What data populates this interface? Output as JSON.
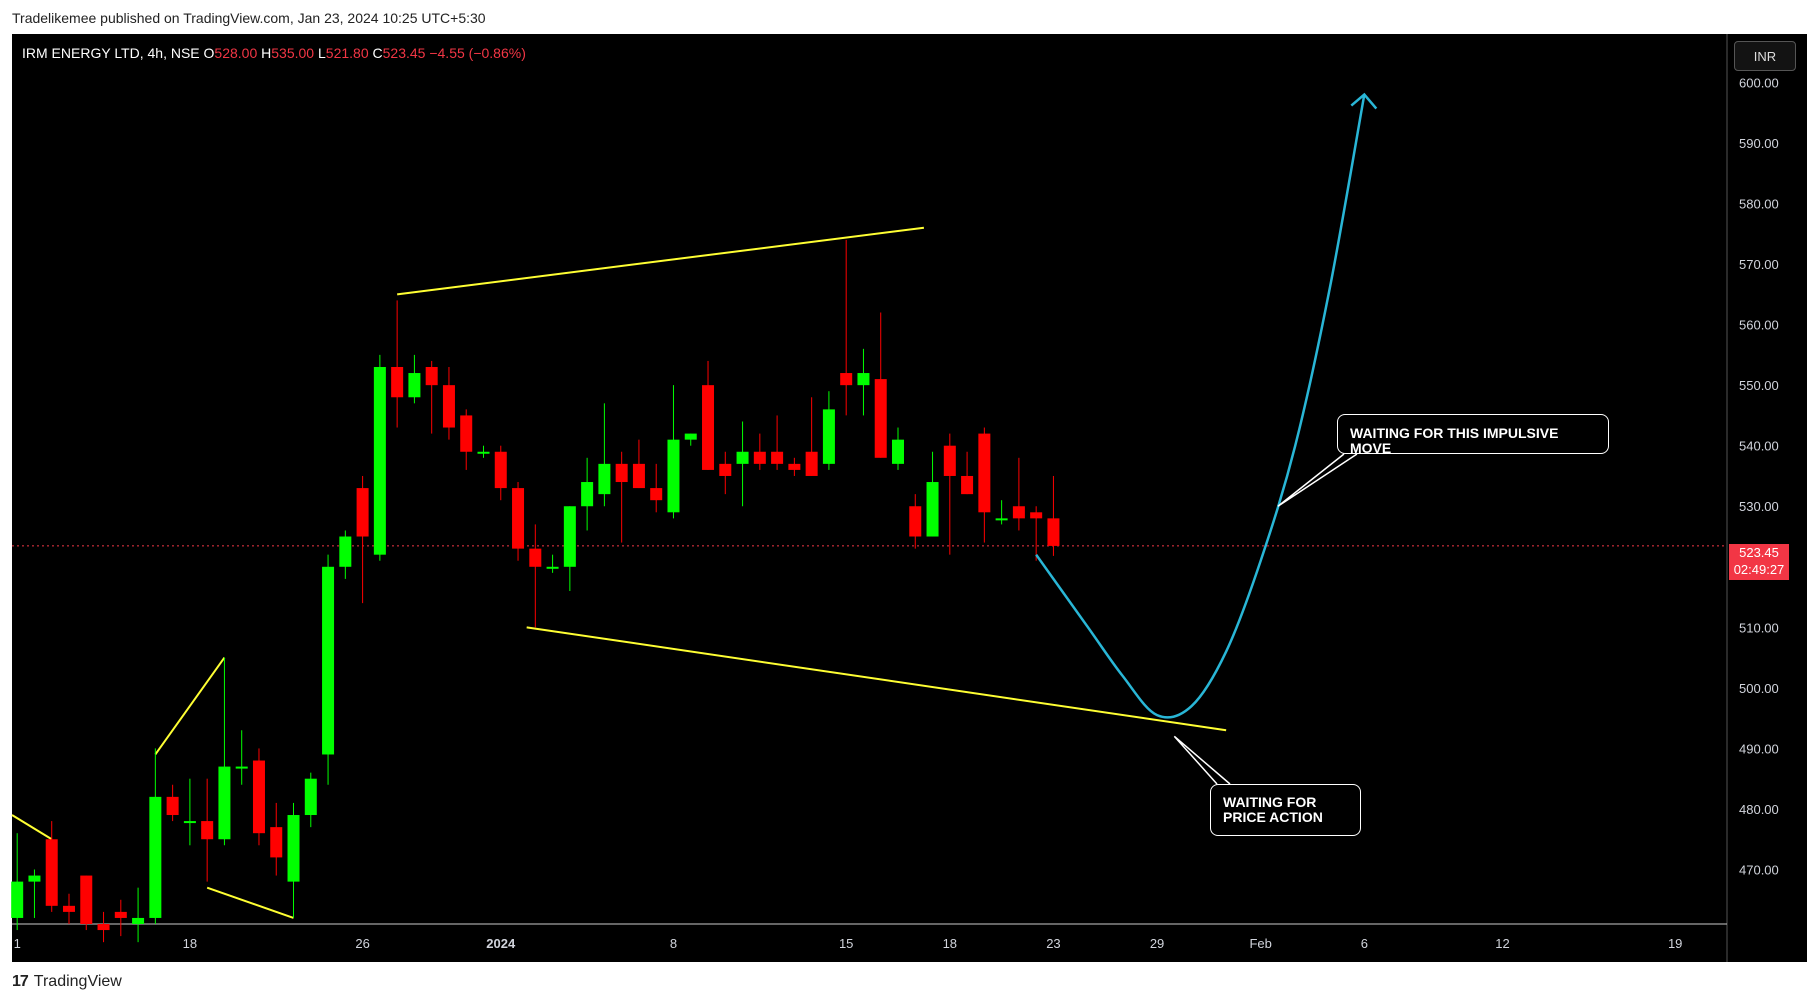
{
  "header": {
    "publisher_line": "Tradelikemee published on TradingView.com, Jan 23, 2024 10:25 UTC+5:30"
  },
  "symbol": {
    "name": "IRM ENERGY LTD, 4h, NSE",
    "o_label": "O",
    "o_value": "528.00",
    "h_label": "H",
    "h_value": "535.00",
    "l_label": "L",
    "l_value": "521.80",
    "c_label": "C",
    "c_value": "523.45",
    "change": "−4.55 (−0.86%)"
  },
  "currency_button": "INR",
  "price_tag": {
    "price": "523.45",
    "countdown": "02:49:27"
  },
  "annotations": {
    "impulse": "WAITING FOR THIS IMPULSIVE MOVE",
    "price_action_line1": "WAITING FOR",
    "price_action_line2": "PRICE ACTION"
  },
  "footer": {
    "logo_text": "TradingView"
  },
  "colors": {
    "up": "#00ff00",
    "down": "#ff0000",
    "trendline": "#ffff33",
    "projection": "#29b6d6",
    "background": "#000000"
  },
  "chart_data": {
    "type": "candlestick",
    "ylim": [
      461,
      608
    ],
    "y_ticks": [
      470,
      480,
      490,
      500,
      510,
      520,
      530,
      540,
      550,
      560,
      570,
      580,
      590,
      600
    ],
    "y_tick_labels": [
      "470.00",
      "480.00",
      "490.00",
      "500.00",
      "510.00",
      "520.00",
      "530.00",
      "540.00",
      "550.00",
      "560.00",
      "570.00",
      "580.00",
      "590.00",
      "600.00"
    ],
    "x_ticks": [
      {
        "label": "1",
        "index": 0
      },
      {
        "label": "18",
        "index": 10
      },
      {
        "label": "26",
        "index": 20
      },
      {
        "label": "2024",
        "index": 28
      },
      {
        "label": "8",
        "index": 38
      },
      {
        "label": "15",
        "index": 48
      },
      {
        "label": "18",
        "index": 54
      },
      {
        "label": "23",
        "index": 60
      },
      {
        "label": "29",
        "index": 66
      },
      {
        "label": "Feb",
        "index": 72
      },
      {
        "label": "6",
        "index": 78
      },
      {
        "label": "12",
        "index": 86
      },
      {
        "label": "19",
        "index": 96
      }
    ],
    "x_range": [
      -0.3,
      99
    ],
    "last_price": 523.45,
    "candles": [
      {
        "o": 462,
        "h": 476,
        "l": 460,
        "c": 468
      },
      {
        "o": 468,
        "h": 470,
        "l": 462,
        "c": 469
      },
      {
        "o": 475,
        "h": 478,
        "l": 463,
        "c": 464
      },
      {
        "o": 464,
        "h": 466,
        "l": 461,
        "c": 463
      },
      {
        "o": 469,
        "h": 469,
        "l": 460,
        "c": 461
      },
      {
        "o": 461,
        "h": 463,
        "l": 458,
        "c": 460
      },
      {
        "o": 463,
        "h": 465,
        "l": 459,
        "c": 462
      },
      {
        "o": 461,
        "h": 467,
        "l": 458,
        "c": 462
      },
      {
        "o": 462,
        "h": 490,
        "l": 461,
        "c": 482
      },
      {
        "o": 482,
        "h": 484,
        "l": 478,
        "c": 479
      },
      {
        "o": 478,
        "h": 485,
        "l": 474,
        "c": 478
      },
      {
        "o": 478,
        "h": 485,
        "l": 468,
        "c": 475
      },
      {
        "o": 475,
        "h": 505,
        "l": 474,
        "c": 487
      },
      {
        "o": 487,
        "h": 493,
        "l": 484,
        "c": 487
      },
      {
        "o": 488,
        "h": 490,
        "l": 474,
        "c": 476
      },
      {
        "o": 477,
        "h": 481,
        "l": 469,
        "c": 472
      },
      {
        "o": 468,
        "h": 481,
        "l": 462,
        "c": 479
      },
      {
        "o": 479,
        "h": 486,
        "l": 477,
        "c": 485
      },
      {
        "o": 489,
        "h": 522,
        "l": 484,
        "c": 520
      },
      {
        "o": 520,
        "h": 526,
        "l": 518,
        "c": 525
      },
      {
        "o": 533,
        "h": 535,
        "l": 514,
        "c": 525
      },
      {
        "o": 522,
        "h": 555,
        "l": 521,
        "c": 553
      },
      {
        "o": 553,
        "h": 564,
        "l": 543,
        "c": 548
      },
      {
        "o": 548,
        "h": 555,
        "l": 547,
        "c": 552
      },
      {
        "o": 553,
        "h": 554,
        "l": 542,
        "c": 550
      },
      {
        "o": 550,
        "h": 553,
        "l": 541,
        "c": 543
      },
      {
        "o": 545,
        "h": 546,
        "l": 536,
        "c": 539
      },
      {
        "o": 539,
        "h": 540,
        "l": 538,
        "c": 539
      },
      {
        "o": 539,
        "h": 540,
        "l": 531,
        "c": 533
      },
      {
        "o": 533,
        "h": 534,
        "l": 521,
        "c": 523
      },
      {
        "o": 523,
        "h": 527,
        "l": 510,
        "c": 520
      },
      {
        "o": 520,
        "h": 522,
        "l": 519,
        "c": 520
      },
      {
        "o": 520,
        "h": 530,
        "l": 516,
        "c": 530
      },
      {
        "o": 530,
        "h": 538,
        "l": 526,
        "c": 534
      },
      {
        "o": 532,
        "h": 547,
        "l": 530,
        "c": 537
      },
      {
        "o": 537,
        "h": 539,
        "l": 524,
        "c": 534
      },
      {
        "o": 537,
        "h": 541,
        "l": 533,
        "c": 533
      },
      {
        "o": 533,
        "h": 537,
        "l": 529,
        "c": 531
      },
      {
        "o": 529,
        "h": 550,
        "l": 528,
        "c": 541
      },
      {
        "o": 541,
        "h": 542,
        "l": 540,
        "c": 542
      },
      {
        "o": 550,
        "h": 554,
        "l": 536,
        "c": 536
      },
      {
        "o": 537,
        "h": 539,
        "l": 532,
        "c": 535
      },
      {
        "o": 537,
        "h": 544,
        "l": 530,
        "c": 539
      },
      {
        "o": 539,
        "h": 542,
        "l": 536,
        "c": 537
      },
      {
        "o": 539,
        "h": 545,
        "l": 536,
        "c": 537
      },
      {
        "o": 537,
        "h": 538,
        "l": 535,
        "c": 536
      },
      {
        "o": 539,
        "h": 548,
        "l": 535,
        "c": 535
      },
      {
        "o": 537,
        "h": 549,
        "l": 536,
        "c": 546
      },
      {
        "o": 552,
        "h": 574,
        "l": 545,
        "c": 550
      },
      {
        "o": 550,
        "h": 556,
        "l": 545,
        "c": 552
      },
      {
        "o": 551,
        "h": 562,
        "l": 538,
        "c": 538
      },
      {
        "o": 537,
        "h": 543,
        "l": 536,
        "c": 541
      },
      {
        "o": 530,
        "h": 532,
        "l": 523,
        "c": 525
      },
      {
        "o": 525,
        "h": 539,
        "l": 525,
        "c": 534
      },
      {
        "o": 540,
        "h": 542,
        "l": 522,
        "c": 535
      },
      {
        "o": 535,
        "h": 539,
        "l": 532,
        "c": 532
      },
      {
        "o": 542,
        "h": 543,
        "l": 524,
        "c": 529
      },
      {
        "o": 528,
        "h": 531,
        "l": 527,
        "c": 528
      },
      {
        "o": 530,
        "h": 538,
        "l": 526,
        "c": 528
      },
      {
        "o": 529,
        "h": 530,
        "l": 521,
        "c": 528
      },
      {
        "o": 528,
        "h": 535,
        "l": 521.8,
        "c": 523.45
      }
    ],
    "trendlines": [
      {
        "points": [
          [
            22,
            565
          ],
          [
            52.5,
            576
          ]
        ]
      },
      {
        "points": [
          [
            29.5,
            510
          ],
          [
            70,
            493
          ]
        ]
      },
      {
        "points": [
          [
            -0.3,
            479
          ],
          [
            2,
            475
          ]
        ]
      },
      {
        "points": [
          [
            8,
            489
          ],
          [
            12,
            505
          ]
        ]
      },
      {
        "points": [
          [
            11,
            467
          ],
          [
            16,
            462
          ]
        ]
      }
    ],
    "projection": {
      "points": [
        [
          59,
          522
        ],
        [
          62,
          510
        ],
        [
          64,
          502
        ],
        [
          66,
          495.5
        ],
        [
          68,
          497
        ],
        [
          70,
          506
        ],
        [
          72,
          521
        ],
        [
          74,
          540
        ],
        [
          76,
          566
        ],
        [
          78,
          598
        ]
      ]
    },
    "callout_anchors": {
      "impulse": [
        73,
        530
      ],
      "price_action": [
        67,
        492
      ]
    }
  }
}
